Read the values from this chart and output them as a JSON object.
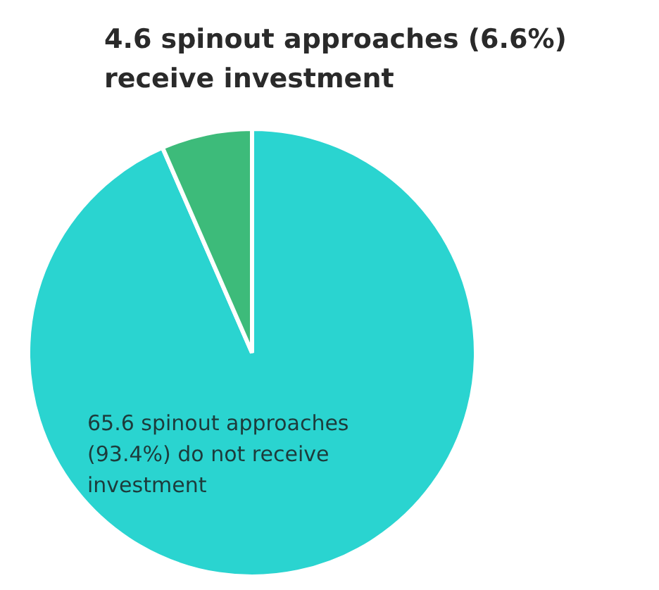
{
  "chart_data": {
    "type": "pie",
    "categories": [
      "65.6 spinout approaches (93.4%) do not receive investment",
      "4.6 spinout approaches (6.6%) receive investment"
    ],
    "values": [
      65.6,
      4.6
    ],
    "colors": [
      "#2ad4d0",
      "#3dbb7a"
    ],
    "legend": false
  }
}
